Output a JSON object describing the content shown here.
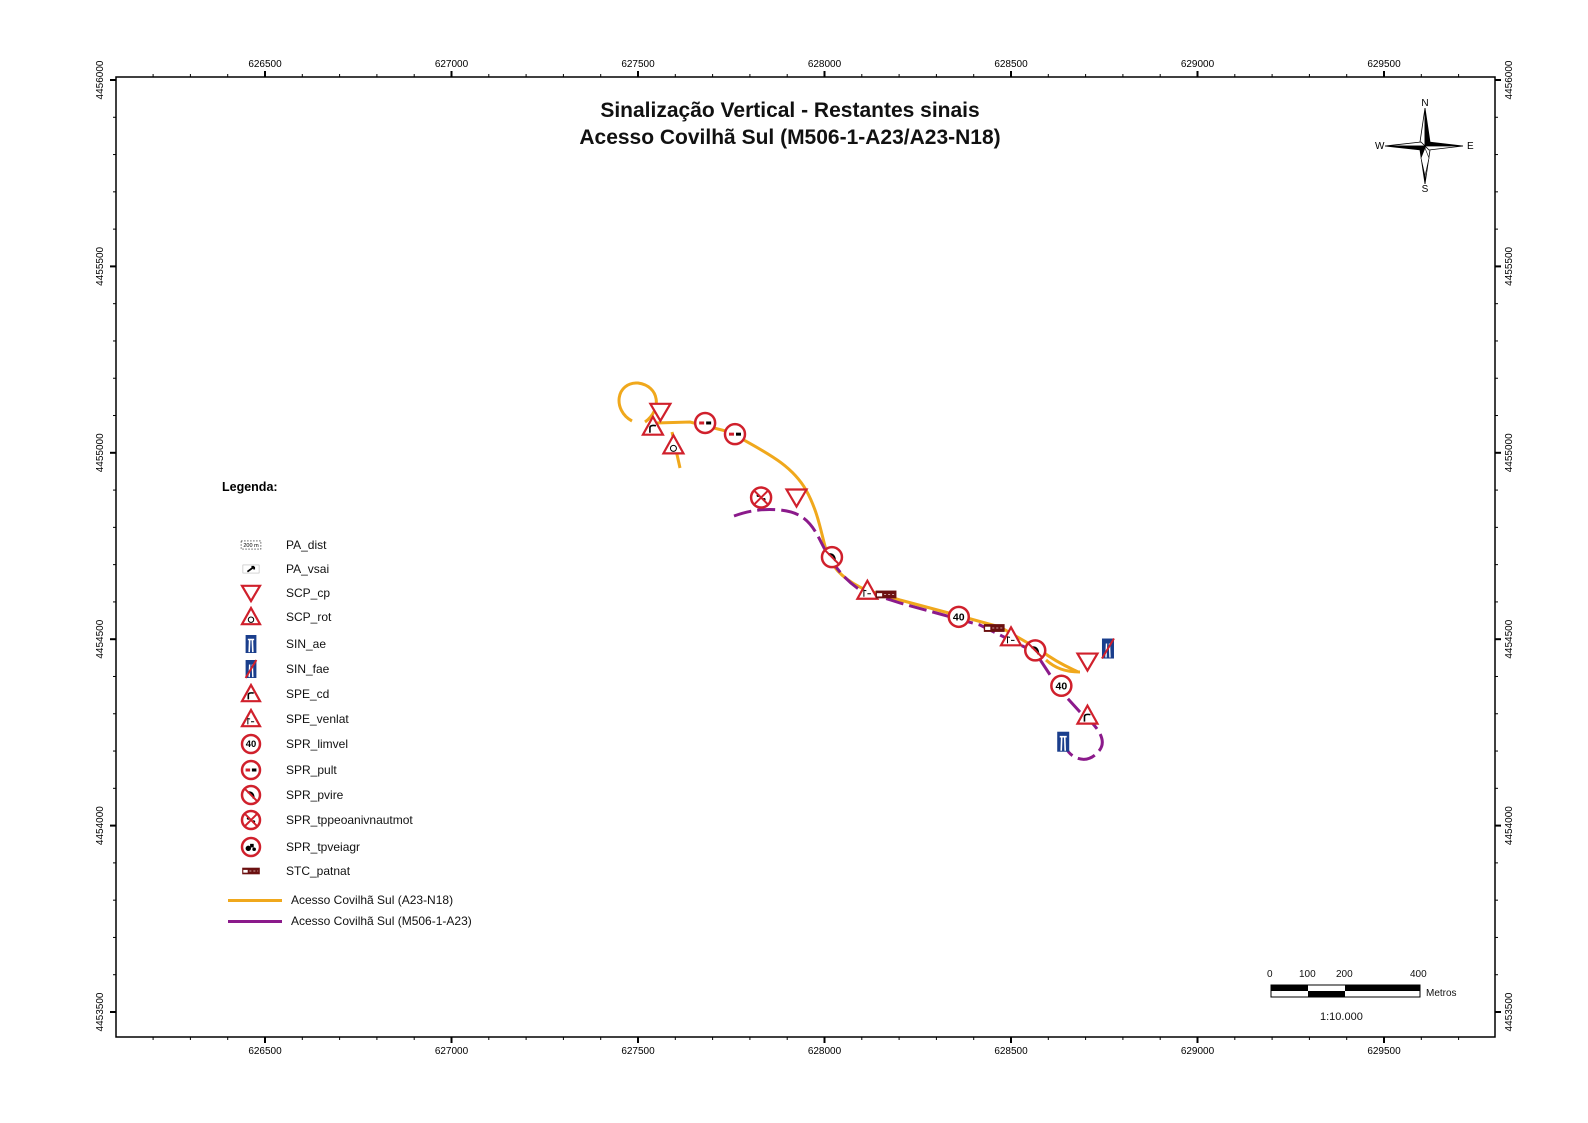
{
  "title": {
    "line1": "Sinalização Vertical - Restantes sinais",
    "line2": "Acesso Covilhã Sul (M506-1-A23/A23-N18)"
  },
  "axes": {
    "x_ticks": [
      "626500",
      "627000",
      "627500",
      "628000",
      "628500",
      "629000",
      "629500"
    ],
    "y_ticks": [
      "4456000",
      "4455500",
      "4455000",
      "4454500",
      "4454000",
      "4453500"
    ]
  },
  "north_arrow": {
    "n": "N",
    "s": "S",
    "e": "E",
    "w": "W"
  },
  "legend": {
    "title": "Legenda:",
    "items": [
      {
        "label": "PA_dist",
        "icon": "distance-plate-icon"
      },
      {
        "label": "PA_vsai",
        "icon": "exit-arrow-plate-icon"
      },
      {
        "label": "SCP_cp",
        "icon": "yield-sign-icon"
      },
      {
        "label": "SCP_rot",
        "icon": "roundabout-warning-icon"
      },
      {
        "label": "SIN_ae",
        "icon": "motorway-sign-icon"
      },
      {
        "label": "SIN_fae",
        "icon": "end-motorway-sign-icon"
      },
      {
        "label": "SPE_cd",
        "icon": "curve-right-warning-icon"
      },
      {
        "label": "SPE_venlat",
        "icon": "side-wind-warning-icon"
      },
      {
        "label": "SPR_limvel",
        "icon": "speed-limit-icon",
        "text": "40"
      },
      {
        "label": "SPR_pult",
        "icon": "no-overtaking-icon"
      },
      {
        "label": "SPR_pvire",
        "icon": "no-turn-icon"
      },
      {
        "label": "SPR_tppeoanivnautmot",
        "icon": "no-pedestrians-animals-icon"
      },
      {
        "label": "SPR_tpveiagr",
        "icon": "no-tractors-icon"
      },
      {
        "label": "STC_patnat",
        "icon": "heritage-sign-icon"
      }
    ],
    "lines": [
      {
        "label": "Acesso Covilhã Sul (A23-N18)",
        "color": "#f0a81c"
      },
      {
        "label": "Acesso Covilhã Sul (M506-1-A23)",
        "color": "#8b1a8b"
      }
    ],
    "distance_plate_text": "200 m"
  },
  "scale_bar": {
    "ticks": [
      "0",
      "100",
      "200",
      "400"
    ],
    "unit": "Metros",
    "ratio": "1:10.000"
  },
  "colors": {
    "orange_route": "#f0a81c",
    "purple_route": "#8b1a8b",
    "sign_red": "#d0202c",
    "sign_blue": "#1a3e8c",
    "heritage_brown": "#6b1010"
  },
  "map_signs": [
    {
      "type": "yield",
      "e": 627560,
      "n": 4455110
    },
    {
      "type": "curve",
      "e": 627540,
      "n": 4455070
    },
    {
      "type": "roundabout",
      "e": 627595,
      "n": 4455020
    },
    {
      "type": "no-overtaking",
      "e": 627680,
      "n": 4455080
    },
    {
      "type": "no-overtaking",
      "e": 627760,
      "n": 4455050
    },
    {
      "type": "no-pedestrians",
      "e": 627830,
      "n": 4454880
    },
    {
      "type": "yield",
      "e": 627925,
      "n": 4454880
    },
    {
      "type": "no-turn",
      "e": 628020,
      "n": 4454720
    },
    {
      "type": "side-wind",
      "e": 628115,
      "n": 4454630
    },
    {
      "type": "heritage",
      "e": 628165,
      "n": 4454620
    },
    {
      "type": "speed-limit",
      "e": 628360,
      "n": 4454560,
      "text": "40"
    },
    {
      "type": "heritage",
      "e": 628455,
      "n": 4454530
    },
    {
      "type": "side-wind",
      "e": 628500,
      "n": 4454505
    },
    {
      "type": "no-turn",
      "e": 628565,
      "n": 4454470
    },
    {
      "type": "yield",
      "e": 628705,
      "n": 4454440
    },
    {
      "type": "end-motorway",
      "e": 628760,
      "n": 4454475
    },
    {
      "type": "speed-limit",
      "e": 628635,
      "n": 4454375,
      "text": "40"
    },
    {
      "type": "curve",
      "e": 628705,
      "n": 4454295
    },
    {
      "type": "motorway",
      "e": 628640,
      "n": 4454225
    }
  ]
}
